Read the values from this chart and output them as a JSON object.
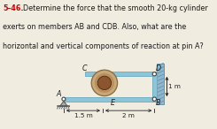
{
  "bg_color": "#f0ece0",
  "frame_color": "#8dc4d8",
  "frame_edge": "#6aaabe",
  "frame_dark": "#5a9ab8",
  "cyl_outer": "#c8a87a",
  "cyl_inner": "#8b5530",
  "cyl_ring": "#b89060",
  "wall_fill": "#90b8cc",
  "wall_edge": "#5a8aaa",
  "pin_fill": "#ffffff",
  "pin_edge": "#444444",
  "ground_color": "#555555",
  "support_fill": "#aaaaaa",
  "text_color": "#1a1a1a",
  "red_color": "#cc0000",
  "dim_color": "#222222",
  "label_A": "A",
  "label_C": "C",
  "label_D": "D",
  "label_E": "E",
  "label_B": "B",
  "dim_1m": "1 m",
  "dim_15m": "1.5 m",
  "dim_2m": "2 m",
  "header_line1_bold": "5–46.",
  "header_line1_rest": "  Determine the force that the smooth 20-kg cylinder",
  "header_line2": "exerts on members AB and CDB. Also, what are the",
  "header_line3": "horizontal and vertical components of reaction at pin A?"
}
